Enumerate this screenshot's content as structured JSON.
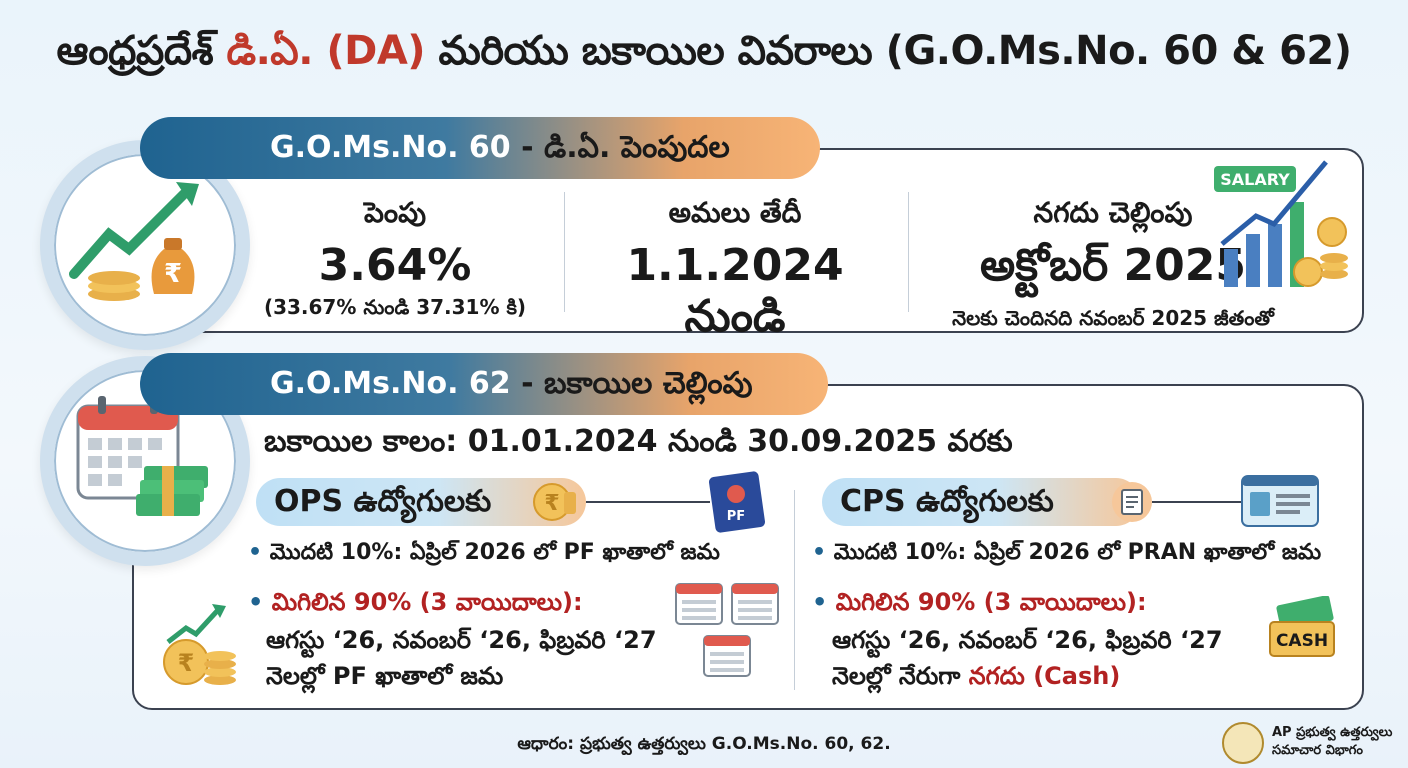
{
  "title": {
    "part1": "ఆంధ్రప్రదేశ్ ",
    "da": "డి.ఏ. (DA)",
    "part2": " మరియు బకాయిల వివరాలు (G.O.Ms.No. 60 & 62)"
  },
  "go60": {
    "banner_code": "G.O.Ms.No. 60",
    "banner_sep": " - ",
    "banner_text": "డి.ఏ. పెంపుదల",
    "hike": {
      "label": "పెంపు",
      "value": "3.64%",
      "sub": "(33.67% నుండి 37.31% కి)"
    },
    "effective": {
      "label": "అమలు తేదీ",
      "value": "1.1.2024 నుండి"
    },
    "cash": {
      "label": "నగదు చెల్లింపు",
      "value": "అక్టోబర్ 2025",
      "sub": "నెలకు చెందినది నవంబర్ 2025 జీతంతో"
    },
    "salary_tag": "SALARY"
  },
  "go62": {
    "banner_code": "G.O.Ms.No. 62",
    "banner_sep": " - ",
    "banner_text": "బకాయిల చెల్లింపు",
    "period": "బకాయిల కాలం: 01.01.2024 నుండి 30.09.2025 వరకు",
    "ops": {
      "title": "OPS ఉద్యోగులకు",
      "first": "మొదటి 10%: ఏప్రిల్ 2026 లో PF ఖాతాలో జమ",
      "rest": "మిగిలిన 90% (3 వాయిదాలు):",
      "months": "ఆగస్టు ‘26, నవంబర్ ‘26, ఫిబ్రవరి ‘27",
      "final": "నెలల్లో PF ఖాతాలో జమ",
      "pf_tag": "PF"
    },
    "cps": {
      "title": "CPS ఉద్యోగులకు",
      "first": "మొదటి 10%: ఏప్రిల్ 2026 లో PRAN ఖాతాలో జమ",
      "rest": "మిగిలిన 90% (3 వాయిదాలు):",
      "months": "ఆగస్టు ‘26, నవంబర్ ‘26, ఫిబ్రవరి ‘27",
      "final_prefix": "నెలల్లో నేరుగా ",
      "final_red": "నగదు (Cash)",
      "cash_tag": "CASH"
    }
  },
  "footer": {
    "source": "ఆధారం: ప్రభుత్వ ఉత్తర్వులు G.O.Ms.No. 60, 62.",
    "org_line1": "AP ప్రభుత్వ ఉత్తర్వులు",
    "org_line2": "సమాచార విభాగం"
  },
  "colors": {
    "accent_blue": "#1f6390",
    "accent_orange": "#f7b476",
    "red": "#c0392b"
  }
}
